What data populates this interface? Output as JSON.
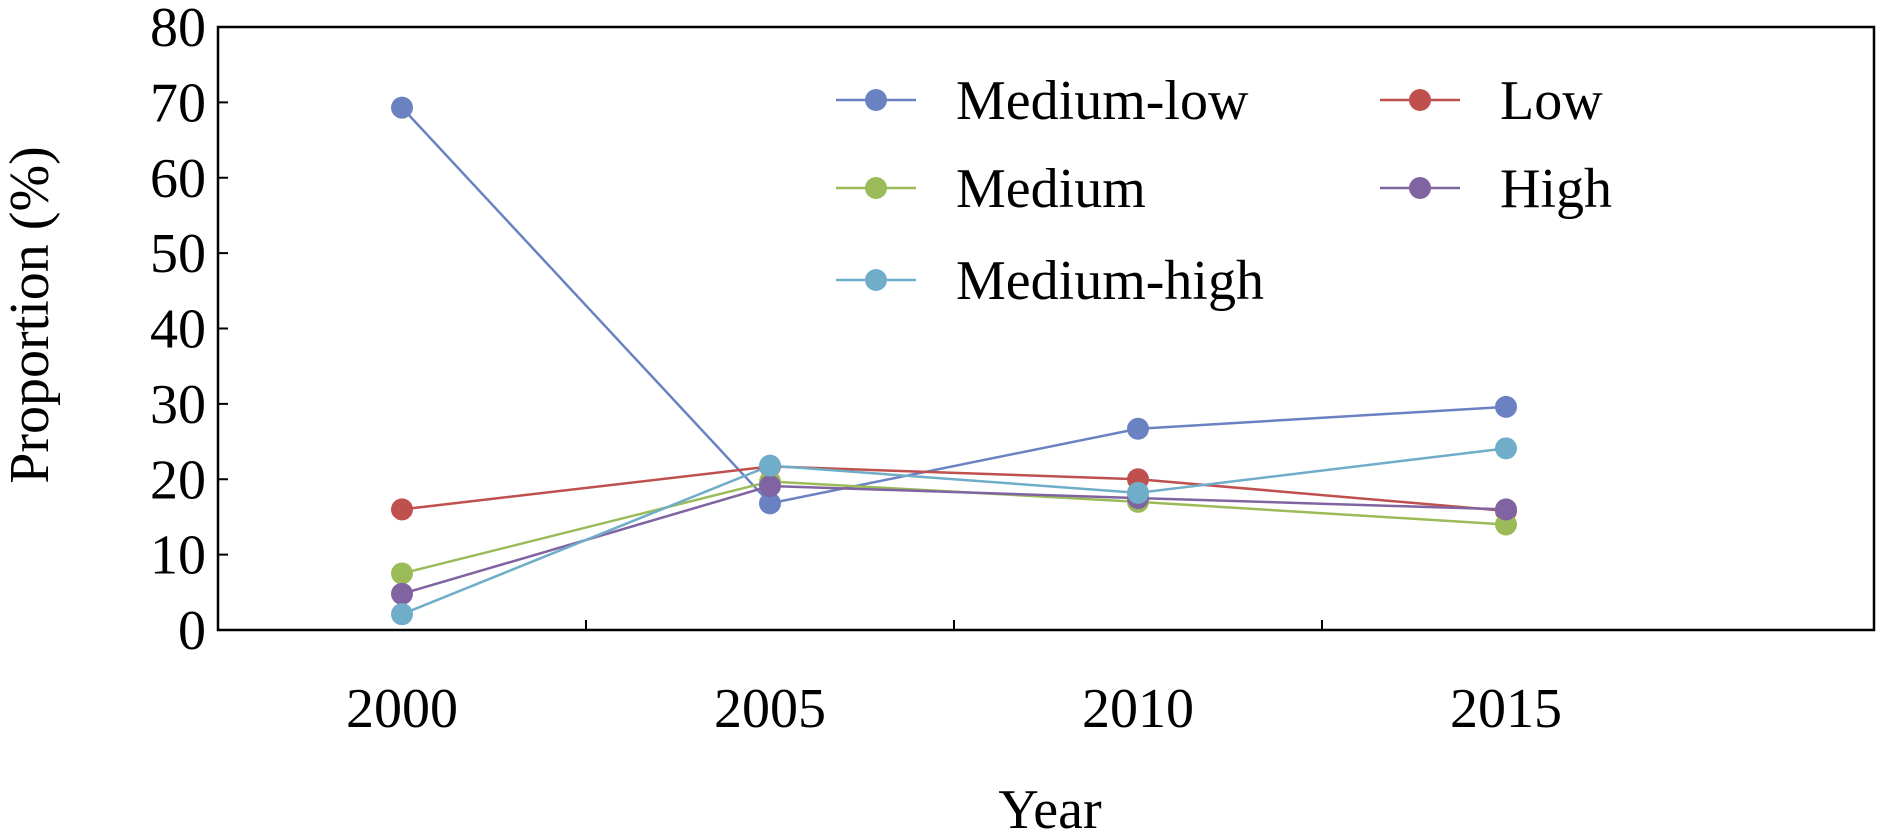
{
  "chart_data": {
    "type": "line",
    "title": "",
    "xlabel": "Year",
    "ylabel": "Proportion (%)",
    "categories": [
      "2000",
      "2005",
      "2010",
      "2015"
    ],
    "ylim": [
      0,
      80
    ],
    "yticks": [
      "0",
      "10",
      "20",
      "30",
      "40",
      "50",
      "60",
      "70",
      "80"
    ],
    "grid": false,
    "legend_position": "top-center",
    "series": [
      {
        "name": "Medium-low",
        "color": "#6a82c2",
        "values": [
          69.3,
          16.8,
          26.7,
          29.6
        ]
      },
      {
        "name": "Low",
        "color": "#c0504d",
        "values": [
          16.0,
          21.7,
          20.0,
          15.8
        ]
      },
      {
        "name": "Medium",
        "color": "#9bbb59",
        "values": [
          7.5,
          19.7,
          17.0,
          14.0
        ]
      },
      {
        "name": "High",
        "color": "#8064a2",
        "values": [
          4.8,
          19.1,
          17.5,
          16.0
        ]
      },
      {
        "name": "Medium-high",
        "color": "#6fadc9",
        "values": [
          2.1,
          21.8,
          18.2,
          24.1
        ]
      }
    ]
  }
}
